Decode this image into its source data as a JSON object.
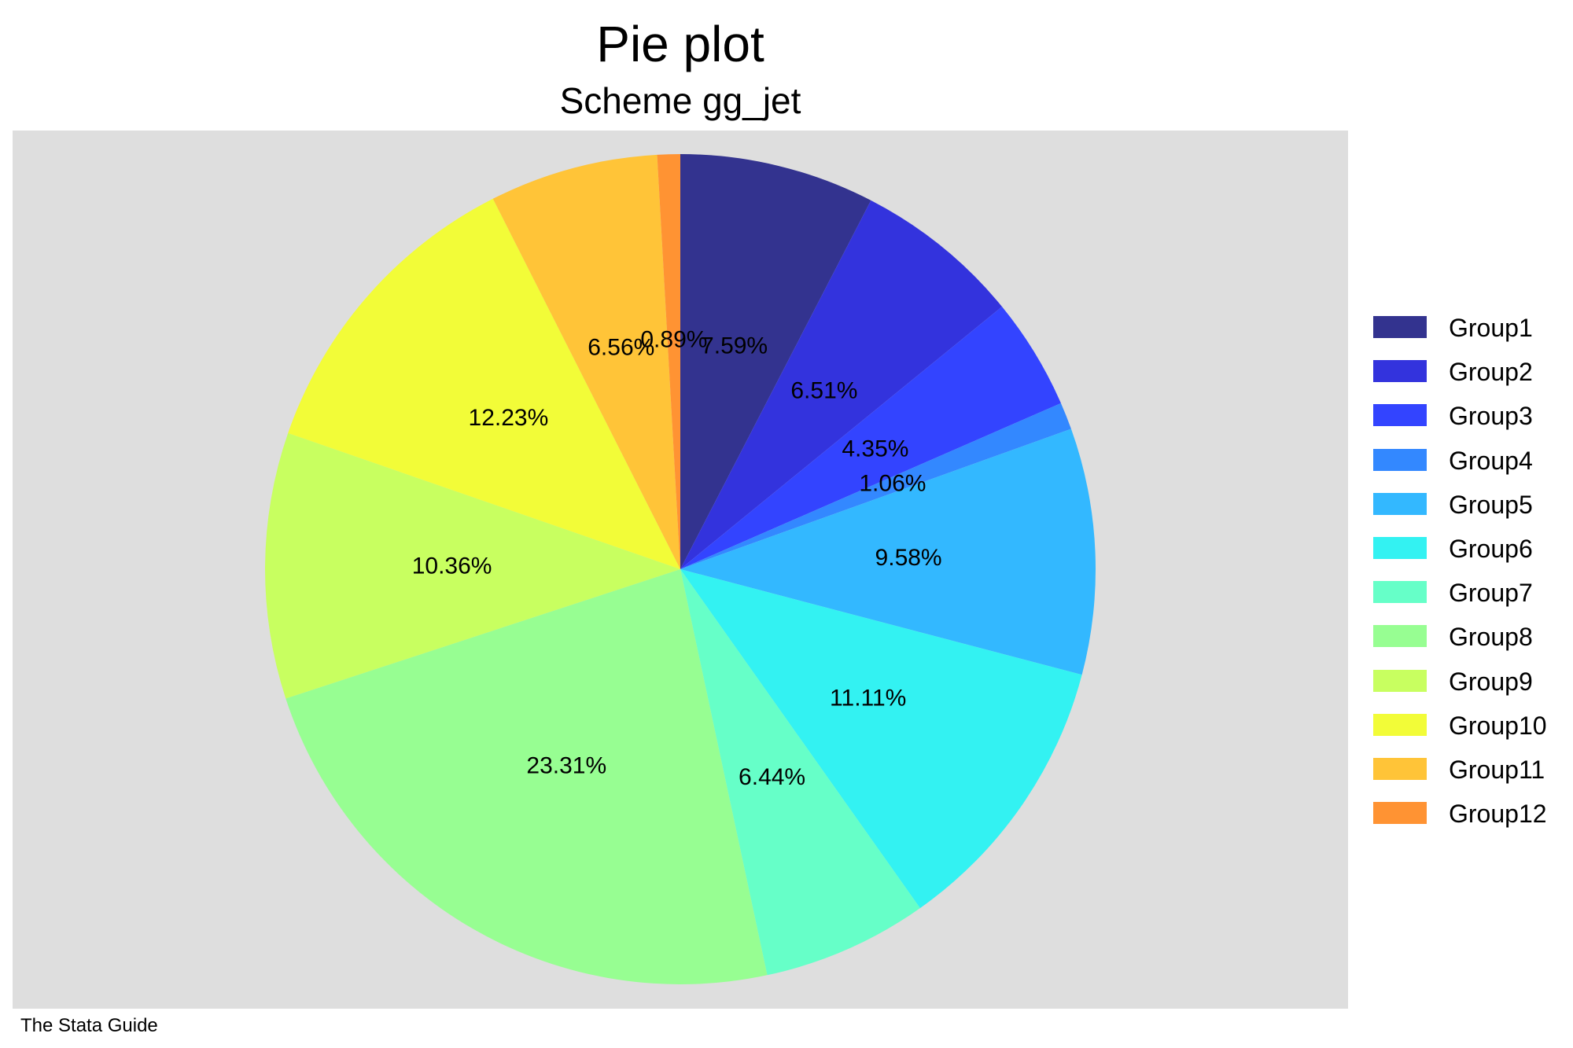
{
  "chart_data": {
    "type": "pie",
    "title": "Pie plot",
    "subtitle": "Scheme gg_jet",
    "note": "The Stata Guide",
    "legend_position": "right",
    "start": "12 o'clock",
    "direction": "clockwise",
    "categories": [
      "Group1",
      "Group2",
      "Group3",
      "Group4",
      "Group5",
      "Group6",
      "Group7",
      "Group8",
      "Group9",
      "Group10",
      "Group11",
      "Group12"
    ],
    "values": [
      7.59,
      6.51,
      4.35,
      1.06,
      9.58,
      11.11,
      6.44,
      23.31,
      10.36,
      12.23,
      6.56,
      0.89
    ],
    "labels": [
      "7.59%",
      "6.51%",
      "4.35%",
      "1.06%",
      "9.58%",
      "11.11%",
      "6.44%",
      "23.31%",
      "10.36%",
      "12.23%",
      "6.56%",
      "0.89%"
    ],
    "colors": [
      "#33338f",
      "#3333dd",
      "#3344ff",
      "#3388ff",
      "#33b8ff",
      "#33f2f2",
      "#66ffc8",
      "#97fe92",
      "#c8ff60",
      "#f2fc38",
      "#ffc438",
      "#ff9333"
    ],
    "plot_background": "#dedede",
    "label_color": "#000000"
  }
}
